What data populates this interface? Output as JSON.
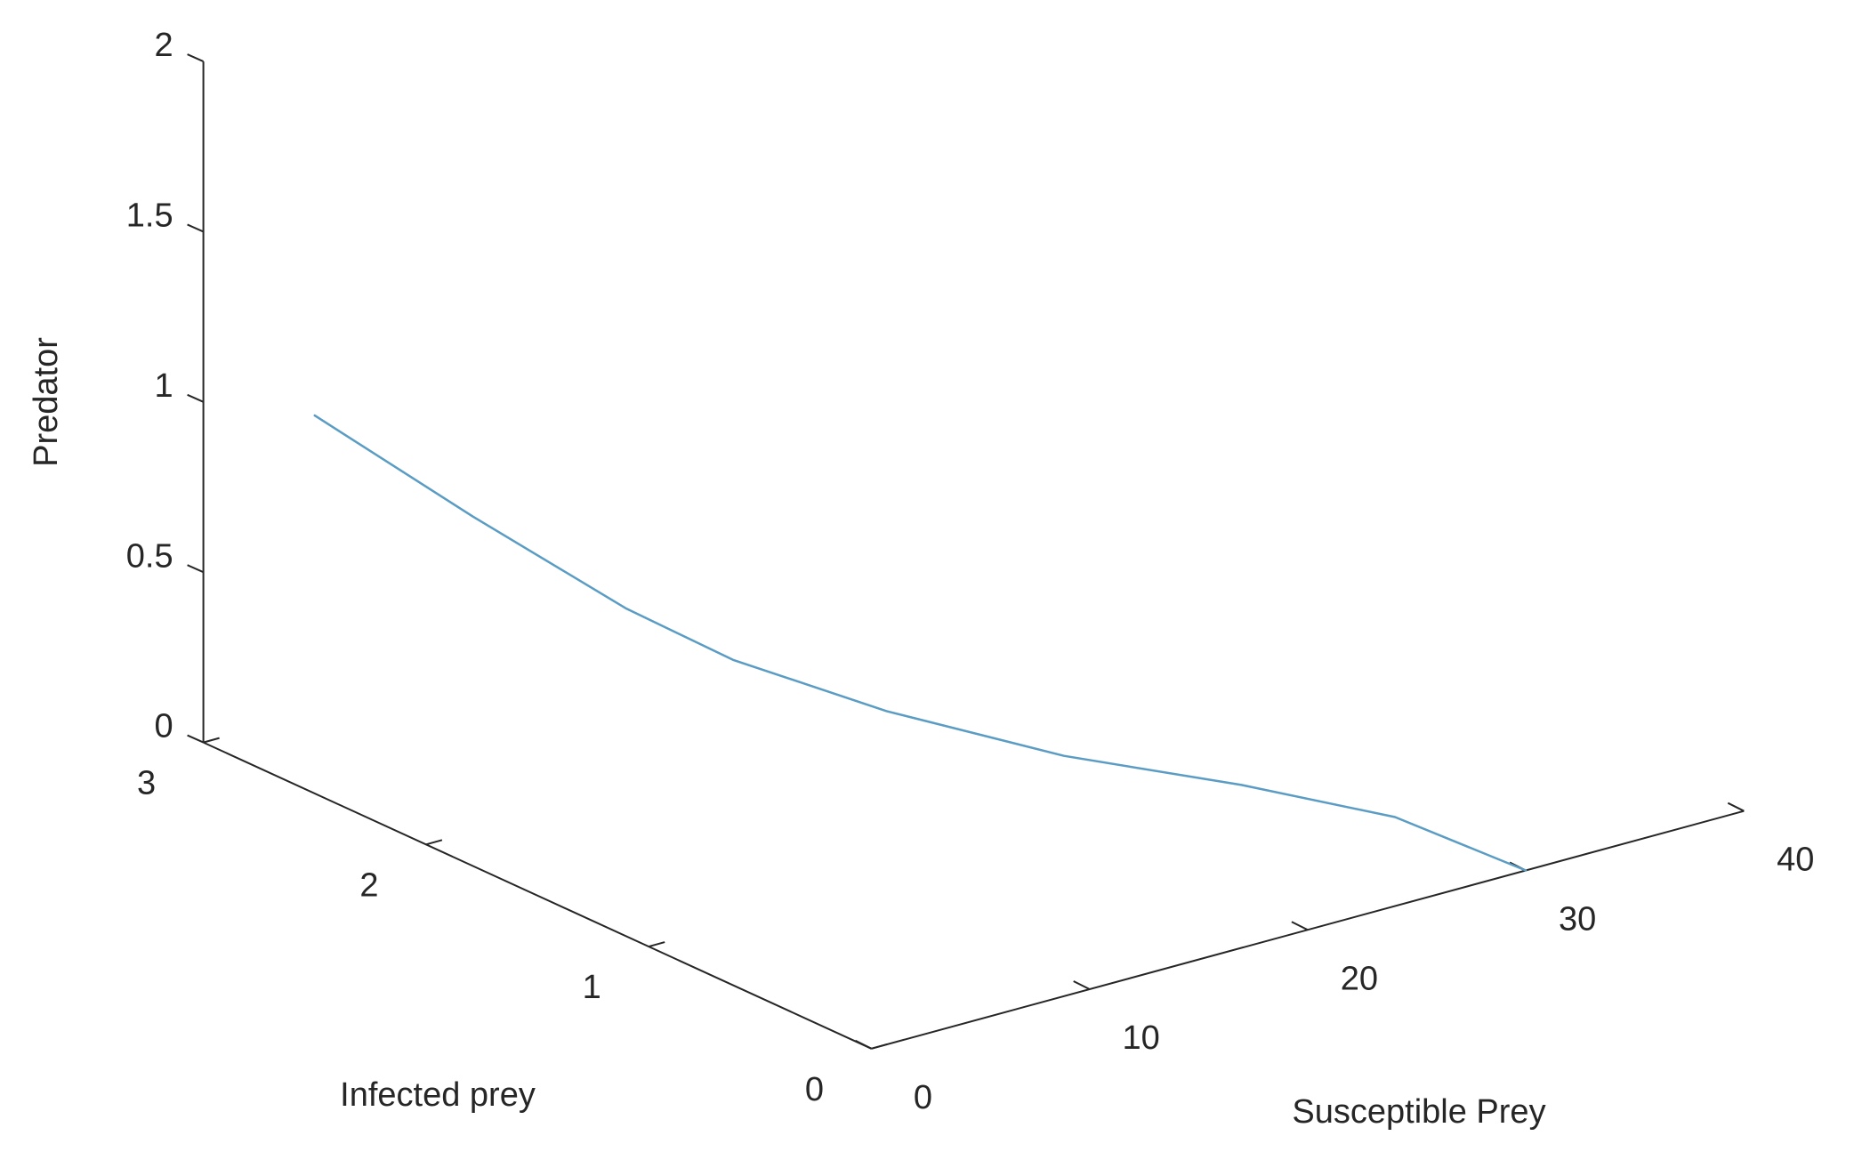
{
  "chart_data": {
    "type": "line3d",
    "xlabel": "Susceptible Prey",
    "ylabel": "Infected prey",
    "zlabel": "Predator",
    "x": [
      0,
      4.19,
      8.17,
      11.01,
      14.99,
      20.06,
      24.62,
      28.09,
      30
    ],
    "y": [
      2.5,
      2.2,
      1.9,
      1.7,
      1.4,
      1.1,
      0.75,
      0.4,
      0
    ],
    "z": [
      1.11,
      0.83,
      0.58,
      0.44,
      0.31,
      0.18,
      0.12,
      0.07,
      0
    ],
    "color": "#5a9cc4",
    "xlim": [
      0,
      40
    ],
    "ylim": [
      0,
      3
    ],
    "zlim": [
      0,
      2
    ],
    "xticks": [
      0,
      10,
      20,
      30,
      40
    ],
    "yticks": [
      0,
      1,
      2,
      3
    ],
    "zticks": [
      0,
      0.5,
      1,
      1.5,
      2
    ]
  }
}
